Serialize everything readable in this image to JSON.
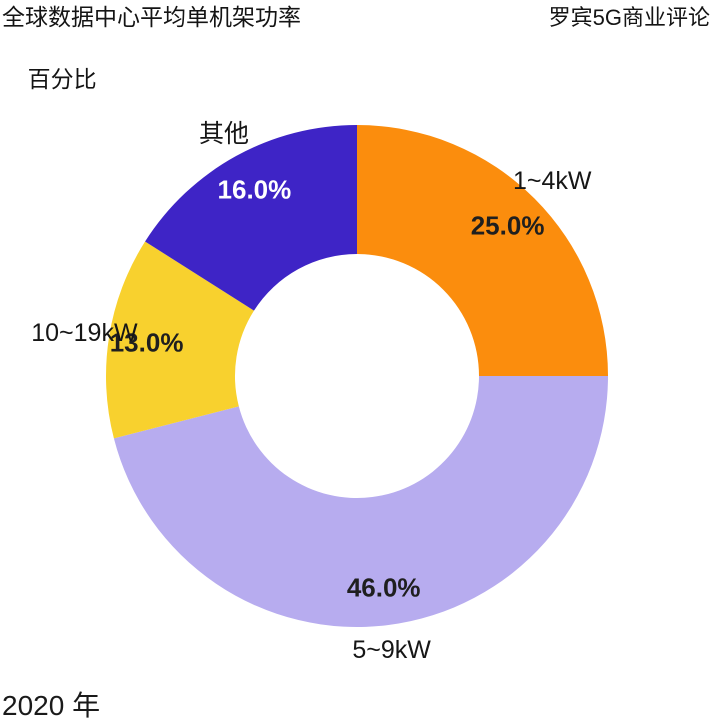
{
  "header": {
    "title_line1": "全球数据中心平均单机架功率",
    "title_line2": "百分比",
    "source": "罗宾5G商业评论"
  },
  "footer": {
    "year_label": "2020 年"
  },
  "colors": {
    "background": "#FFFFFF",
    "text_primary": "#161616",
    "pct_text_default": "#1F1F1F"
  },
  "chart_data": {
    "type": "pie",
    "subtype": "donut",
    "title": "全球数据中心平均单机架功率",
    "unit_label": "百分比",
    "start_angle_deg": 0,
    "direction": "clockwise",
    "legend": "none",
    "categories": [
      "1~4kW",
      "5~9kW",
      "10~19kW",
      "其他"
    ],
    "values": [
      25.0,
      46.0,
      13.0,
      16.0
    ],
    "slices": [
      {
        "label": "1~4kW",
        "value": 25.0,
        "pct_label": "25.0%",
        "color": "#FB8D0D",
        "pct_text_color": "#1F1F1F"
      },
      {
        "label": "5~9kW",
        "value": 46.0,
        "pct_label": "46.0%",
        "color": "#B7ACEF",
        "pct_text_color": "#1F1F1F"
      },
      {
        "label": "10~19kW",
        "value": 13.0,
        "pct_label": "13.0%",
        "color": "#F8D12E",
        "pct_text_color": "#1F1F1F"
      },
      {
        "label": "其他",
        "value": 16.0,
        "pct_label": "16.0%",
        "color": "#3E24C6",
        "pct_text_color": "#FFFFFF"
      }
    ]
  }
}
